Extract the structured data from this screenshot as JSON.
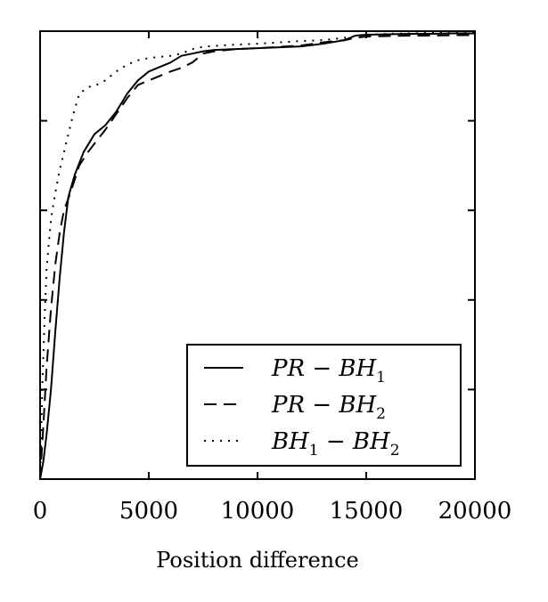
{
  "chart_data": {
    "type": "line",
    "title": "",
    "xlabel": "Position difference",
    "ylabel": "",
    "xlim": [
      0,
      20000
    ],
    "ylim": [
      0,
      1
    ],
    "x_ticks": [
      0,
      5000,
      10000,
      15000,
      20000
    ],
    "x_tick_labels": [
      "0",
      "5000",
      "10000",
      "15000",
      "20000"
    ],
    "y_ticks": [
      0,
      0.2,
      0.4,
      0.6,
      0.8,
      1.0
    ],
    "grid": false,
    "legend_position": "lower-right",
    "series": [
      {
        "name": "PR - BH1",
        "label_main": "PR − BH",
        "label_sub": "1",
        "dash": "solid",
        "x": [
          0,
          150,
          300,
          500,
          700,
          900,
          1100,
          1300,
          1600,
          2000,
          2500,
          3000,
          3500,
          4000,
          4500,
          5000,
          6000,
          6500,
          7000,
          7500,
          8000,
          9000,
          10000,
          11000,
          12000,
          13000,
          14000,
          14500,
          15000,
          16000,
          17000,
          18000,
          19000,
          20000
        ],
        "y": [
          0.0,
          0.04,
          0.1,
          0.2,
          0.33,
          0.45,
          0.55,
          0.63,
          0.68,
          0.73,
          0.77,
          0.79,
          0.82,
          0.86,
          0.89,
          0.91,
          0.93,
          0.945,
          0.95,
          0.955,
          0.958,
          0.96,
          0.962,
          0.964,
          0.966,
          0.972,
          0.98,
          0.99,
          0.992,
          0.993,
          0.994,
          0.994,
          0.995,
          0.995
        ]
      },
      {
        "name": "PR - BH2",
        "label_main": "PR − BH",
        "label_sub": "2",
        "dash": "dashed",
        "x": [
          0,
          150,
          300,
          500,
          700,
          900,
          1100,
          1400,
          1800,
          2200,
          2600,
          3000,
          3500,
          4000,
          4500,
          5000,
          5500,
          6000,
          6500,
          7000,
          7500,
          8000,
          9000,
          10000,
          11000,
          12000,
          13000,
          14000,
          14500,
          15000,
          16000,
          17000,
          18000,
          19000,
          20000
        ],
        "y": [
          0.0,
          0.12,
          0.25,
          0.38,
          0.48,
          0.55,
          0.6,
          0.64,
          0.7,
          0.73,
          0.755,
          0.78,
          0.815,
          0.85,
          0.88,
          0.89,
          0.9,
          0.91,
          0.918,
          0.93,
          0.95,
          0.955,
          0.96,
          0.962,
          0.965,
          0.968,
          0.975,
          0.98,
          0.985,
          0.988,
          0.989,
          0.99,
          0.99,
          0.991,
          0.991
        ]
      },
      {
        "name": "BH1 - BH2",
        "label_main": "BH − BH",
        "label_sub_1": "1",
        "label_sub_2": "2",
        "dash": "dotted",
        "x": [
          0,
          100,
          200,
          300,
          500,
          700,
          900,
          1100,
          1300,
          1500,
          1800,
          2200,
          2600,
          3000,
          3500,
          4000,
          4500,
          5000,
          6000,
          6500,
          7000,
          7500,
          8000,
          9000,
          10000,
          11000,
          12000,
          13000,
          14000,
          15000,
          16000,
          17000,
          18000,
          19000,
          20000
        ],
        "y": [
          0.0,
          0.2,
          0.35,
          0.47,
          0.58,
          0.64,
          0.69,
          0.73,
          0.77,
          0.81,
          0.86,
          0.875,
          0.88,
          0.89,
          0.91,
          0.925,
          0.935,
          0.94,
          0.945,
          0.95,
          0.96,
          0.965,
          0.967,
          0.97,
          0.972,
          0.975,
          0.978,
          0.98,
          0.985,
          0.992,
          0.994,
          0.995,
          0.996,
          0.997,
          0.997
        ]
      }
    ]
  }
}
